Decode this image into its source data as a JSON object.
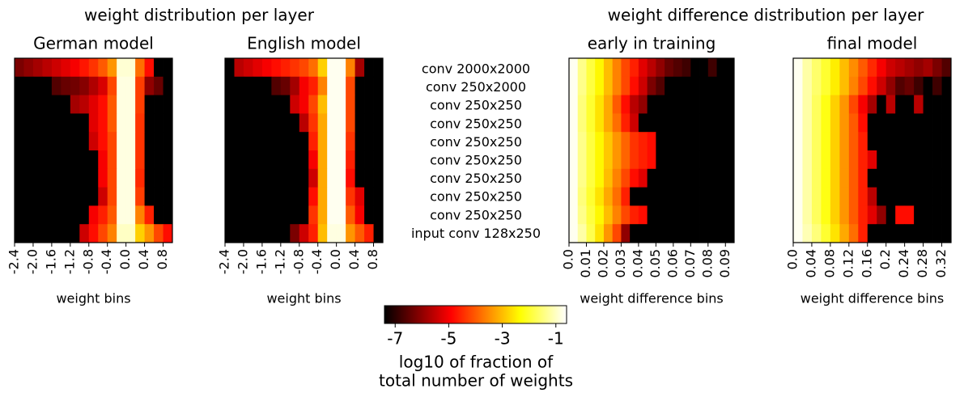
{
  "group_titles": [
    "weight distribution per layer",
    "weight difference distribution per layer"
  ],
  "row_labels": [
    "conv 2000x2000",
    "conv 250x2000",
    "conv 250x250",
    "conv 250x250",
    "conv 250x250",
    "conv 250x250",
    "conv 250x250",
    "conv 250x250",
    "conv 250x250",
    "input conv 128x250"
  ],
  "colorbar": {
    "label": [
      "log10 of fraction of",
      "total number of weights"
    ],
    "lim": [
      -7.4,
      -0.6
    ],
    "ticks": [
      -7,
      -5,
      -3,
      -1
    ],
    "colormap": "hot"
  },
  "chart_data": [
    {
      "type": "heatmap",
      "title": "German model",
      "xlabel": "weight bins",
      "xlim": [
        -2.4,
        1.0
      ],
      "xticks": [
        -2.4,
        {
          "value": -2.0,
          "label": "-2.0"
        },
        -1.6,
        -1.2,
        -0.8,
        -0.4,
        {
          "value": 0,
          "label": "0.0"
        },
        0.4,
        0.8
      ],
      "values": [
        [
          -6.2,
          -6.0,
          -5.8,
          -5.6,
          -5.4,
          -5.2,
          -5.0,
          -4.7,
          -4.4,
          -4.0,
          -3.4,
          -0.9,
          -0.9,
          -3.8,
          -4.8,
          -7.4,
          -7.4
        ],
        [
          -7.4,
          -7.4,
          -7.4,
          -7.4,
          -6.6,
          -6.4,
          -6.3,
          -6.1,
          -5.7,
          -5.3,
          -4.2,
          -0.8,
          -0.8,
          -4.3,
          -6.0,
          -6.4,
          -7.4
        ],
        [
          -7.4,
          -7.4,
          -7.4,
          -7.4,
          -7.4,
          -7.4,
          -5.8,
          -5.6,
          -5.2,
          -4.8,
          -4.0,
          -0.8,
          -0.8,
          -4.3,
          -7.4,
          -7.4,
          -7.4
        ],
        [
          -7.4,
          -7.4,
          -7.4,
          -7.4,
          -7.4,
          -7.4,
          -7.4,
          -7.4,
          -5.2,
          -4.8,
          -4.0,
          -0.8,
          -0.8,
          -4.4,
          -7.4,
          -7.4,
          -7.4
        ],
        [
          -7.4,
          -7.4,
          -7.4,
          -7.4,
          -7.4,
          -7.4,
          -7.4,
          -7.4,
          -5.4,
          -4.8,
          -4.2,
          -0.8,
          -0.8,
          -4.4,
          -7.4,
          -7.4,
          -7.4
        ],
        [
          -7.4,
          -7.4,
          -7.4,
          -7.4,
          -7.4,
          -7.4,
          -7.4,
          -7.4,
          -7.4,
          -5.0,
          -4.2,
          -0.8,
          -0.8,
          -4.4,
          -7.4,
          -7.4,
          -7.4
        ],
        [
          -7.4,
          -7.4,
          -7.4,
          -7.4,
          -7.4,
          -7.4,
          -7.4,
          -7.4,
          -7.4,
          -5.0,
          -4.2,
          -0.8,
          -0.8,
          -4.5,
          -7.4,
          -7.4,
          -7.4
        ],
        [
          -7.4,
          -7.4,
          -7.4,
          -7.4,
          -7.4,
          -7.4,
          -7.4,
          -7.4,
          -7.4,
          -5.4,
          -4.2,
          -0.8,
          -0.8,
          -4.3,
          -7.4,
          -7.4,
          -7.4
        ],
        [
          -7.4,
          -7.4,
          -7.4,
          -7.4,
          -7.4,
          -7.4,
          -7.4,
          -7.4,
          -5.0,
          -4.6,
          -4.0,
          -0.8,
          -0.8,
          -3.6,
          -4.6,
          -7.4,
          -7.4
        ],
        [
          -7.4,
          -7.4,
          -7.4,
          -7.4,
          -7.4,
          -7.4,
          -7.4,
          -5.4,
          -4.8,
          -4.2,
          -3.6,
          -1.0,
          -1.0,
          -2.8,
          -3.4,
          -4.2,
          -4.8
        ]
      ]
    },
    {
      "type": "heatmap",
      "title": "English model",
      "xlabel": "weight bins",
      "xlim": [
        -2.4,
        1.0
      ],
      "xticks": [
        -2.4,
        {
          "value": -2.0,
          "label": "-2.0"
        },
        -1.6,
        -1.2,
        -0.8,
        -0.4,
        {
          "value": 0,
          "label": "0.0"
        },
        0.4,
        0.8
      ],
      "values": [
        [
          -7.4,
          -5.6,
          -5.4,
          -5.2,
          -5.0,
          -4.8,
          -4.6,
          -4.4,
          -4.2,
          -3.8,
          -2.8,
          -0.7,
          -0.7,
          -3.6,
          -5.8,
          -7.4,
          -7.4
        ],
        [
          -7.4,
          -7.4,
          -7.4,
          -7.4,
          -7.4,
          -6.6,
          -6.4,
          -5.8,
          -5.0,
          -4.6,
          -3.6,
          -0.7,
          -0.7,
          -4.2,
          -7.4,
          -7.4,
          -7.4
        ],
        [
          -7.4,
          -7.4,
          -7.4,
          -7.4,
          -7.4,
          -7.4,
          -7.4,
          -5.4,
          -5.0,
          -4.2,
          -3.0,
          -0.7,
          -0.7,
          -4.2,
          -7.4,
          -7.4,
          -7.4
        ],
        [
          -7.4,
          -7.4,
          -7.4,
          -7.4,
          -7.4,
          -7.4,
          -7.4,
          -7.4,
          -5.6,
          -4.4,
          -3.2,
          -0.7,
          -0.7,
          -4.2,
          -7.4,
          -7.4,
          -7.4
        ],
        [
          -7.4,
          -7.4,
          -7.4,
          -7.4,
          -7.4,
          -7.4,
          -7.4,
          -7.4,
          -7.4,
          -4.6,
          -3.2,
          -0.7,
          -0.7,
          -4.4,
          -7.4,
          -7.4,
          -7.4
        ],
        [
          -7.4,
          -7.4,
          -7.4,
          -7.4,
          -7.4,
          -7.4,
          -7.4,
          -7.4,
          -7.4,
          -5.0,
          -3.2,
          -0.7,
          -0.7,
          -4.6,
          -7.4,
          -7.4,
          -7.4
        ],
        [
          -7.4,
          -7.4,
          -7.4,
          -7.4,
          -7.4,
          -7.4,
          -7.4,
          -7.4,
          -7.4,
          -5.4,
          -3.2,
          -0.7,
          -0.7,
          -4.8,
          -7.4,
          -7.4,
          -7.4
        ],
        [
          -7.4,
          -7.4,
          -7.4,
          -7.4,
          -7.4,
          -7.4,
          -7.4,
          -7.4,
          -7.4,
          -4.8,
          -3.2,
          -0.7,
          -0.7,
          -4.4,
          -5.2,
          -7.4,
          -7.4
        ],
        [
          -7.4,
          -7.4,
          -7.4,
          -7.4,
          -7.4,
          -7.4,
          -7.4,
          -7.4,
          -7.4,
          -4.4,
          -3.2,
          -0.7,
          -0.7,
          -4.0,
          -5.0,
          -7.4,
          -7.4
        ],
        [
          -7.4,
          -7.4,
          -7.4,
          -7.4,
          -7.4,
          -7.4,
          -7.4,
          -6.2,
          -5.4,
          -4.6,
          -3.0,
          -0.8,
          -0.8,
          -3.4,
          -4.0,
          -4.6,
          -7.4
        ]
      ]
    },
    {
      "type": "heatmap",
      "title": "early in training",
      "xlabel": "weight difference bins",
      "xlim": [
        0,
        0.095
      ],
      "xticks": [
        {
          "value": 0,
          "label": "0.0"
        },
        0.01,
        0.02,
        0.03,
        0.04,
        0.05,
        0.06,
        0.07,
        0.08,
        0.09
      ],
      "values": [
        [
          -0.7,
          -1.4,
          -1.9,
          -2.4,
          -3.0,
          -3.6,
          -4.2,
          -4.6,
          -5.2,
          -5.6,
          -6.0,
          -6.4,
          -6.6,
          -6.8,
          -7.4,
          -7.4,
          -6.8,
          -7.4,
          -7.4
        ],
        [
          -0.7,
          -1.4,
          -1.9,
          -2.4,
          -3.0,
          -3.6,
          -4.2,
          -4.8,
          -5.4,
          -6.2,
          -6.6,
          -7.4,
          -7.4,
          -7.4,
          -7.4,
          -7.4,
          -7.4,
          -7.4,
          -7.4
        ],
        [
          -0.7,
          -1.5,
          -2.0,
          -2.6,
          -3.2,
          -4.0,
          -4.8,
          -5.6,
          -6.0,
          -7.4,
          -7.4,
          -7.4,
          -7.4,
          -7.4,
          -7.4,
          -7.4,
          -7.4,
          -7.4,
          -7.4
        ],
        [
          -0.7,
          -1.5,
          -2.0,
          -2.6,
          -3.2,
          -3.8,
          -4.6,
          -5.4,
          -7.4,
          -7.4,
          -7.4,
          -7.4,
          -7.4,
          -7.4,
          -7.4,
          -7.4,
          -7.4,
          -7.4,
          -7.4
        ],
        [
          -0.7,
          -1.4,
          -1.9,
          -2.4,
          -2.9,
          -3.4,
          -3.9,
          -4.4,
          -4.6,
          -4.8,
          -7.4,
          -7.4,
          -7.4,
          -7.4,
          -7.4,
          -7.4,
          -7.4,
          -7.4,
          -7.4
        ],
        [
          -0.7,
          -1.4,
          -1.9,
          -2.4,
          -2.9,
          -3.4,
          -3.9,
          -4.4,
          -4.6,
          -4.8,
          -7.4,
          -7.4,
          -7.4,
          -7.4,
          -7.4,
          -7.4,
          -7.4,
          -7.4,
          -7.4
        ],
        [
          -0.7,
          -1.4,
          -1.9,
          -2.4,
          -3.0,
          -3.6,
          -4.2,
          -4.8,
          -5.2,
          -7.4,
          -7.4,
          -7.4,
          -7.4,
          -7.4,
          -7.4,
          -7.4,
          -7.4,
          -7.4,
          -7.4
        ],
        [
          -0.7,
          -1.5,
          -2.0,
          -2.6,
          -3.2,
          -3.8,
          -4.6,
          -7.4,
          -7.4,
          -7.4,
          -7.4,
          -7.4,
          -7.4,
          -7.4,
          -7.4,
          -7.4,
          -7.4,
          -7.4,
          -7.4
        ],
        [
          -0.7,
          -1.4,
          -1.9,
          -2.4,
          -3.0,
          -3.6,
          -4.2,
          -4.6,
          -4.8,
          -7.4,
          -7.4,
          -7.4,
          -7.4,
          -7.4,
          -7.4,
          -7.4,
          -7.4,
          -7.4,
          -7.4
        ],
        [
          -0.7,
          -1.2,
          -1.8,
          -2.6,
          -3.4,
          -4.2,
          -6.0,
          -7.4,
          -7.4,
          -7.4,
          -7.4,
          -7.4,
          -7.4,
          -7.4,
          -7.4,
          -7.4,
          -7.4,
          -7.4,
          -7.4
        ]
      ]
    },
    {
      "type": "heatmap",
      "title": "final model",
      "xlabel": "weight difference bins",
      "xlim": [
        0,
        0.34
      ],
      "xticks": [
        {
          "value": 0,
          "label": "0.0"
        },
        0.04,
        0.08,
        0.12,
        0.16,
        0.2,
        0.24,
        0.28,
        0.32
      ],
      "values": [
        [
          -0.7,
          -1.2,
          -1.6,
          -2.0,
          -2.5,
          -3.0,
          -3.5,
          -4.0,
          -4.5,
          -5.0,
          -5.4,
          -5.6,
          -5.8,
          -6.0,
          -5.8,
          -6.2,
          -6.6
        ],
        [
          -0.7,
          -1.2,
          -1.6,
          -2.0,
          -2.5,
          -3.0,
          -3.6,
          -4.2,
          -4.8,
          -5.4,
          -6.0,
          -6.6,
          -6.4,
          -6.8,
          -7.4,
          -6.8,
          -7.4
        ],
        [
          -0.7,
          -1.2,
          -1.7,
          -2.2,
          -2.8,
          -3.4,
          -4.2,
          -5.0,
          -5.8,
          -7.4,
          -5.6,
          -7.4,
          -7.4,
          -5.6,
          -7.4,
          -7.4,
          -7.4
        ],
        [
          -0.7,
          -1.2,
          -1.7,
          -2.2,
          -2.8,
          -3.4,
          -4.0,
          -4.8,
          -7.4,
          -7.4,
          -7.4,
          -7.4,
          -7.4,
          -7.4,
          -7.4,
          -7.4,
          -7.4
        ],
        [
          -0.7,
          -1.2,
          -1.7,
          -2.2,
          -2.8,
          -3.4,
          -4.0,
          -4.6,
          -7.4,
          -7.4,
          -7.4,
          -7.4,
          -7.4,
          -7.4,
          -7.4,
          -7.4,
          -7.4
        ],
        [
          -0.7,
          -1.2,
          -1.7,
          -2.2,
          -2.8,
          -3.4,
          -4.0,
          -4.6,
          -5.2,
          -7.4,
          -7.4,
          -7.4,
          -7.4,
          -7.4,
          -7.4,
          -7.4,
          -7.4
        ],
        [
          -0.7,
          -1.2,
          -1.7,
          -2.2,
          -2.8,
          -3.4,
          -4.0,
          -4.6,
          -7.4,
          -7.4,
          -7.4,
          -7.4,
          -7.4,
          -7.4,
          -7.4,
          -7.4,
          -7.4
        ],
        [
          -0.7,
          -1.2,
          -1.7,
          -2.2,
          -2.8,
          -3.4,
          -4.0,
          -4.6,
          -5.6,
          -7.4,
          -7.4,
          -7.4,
          -7.4,
          -7.4,
          -7.4,
          -7.4,
          -7.4
        ],
        [
          -0.7,
          -1.2,
          -1.7,
          -2.2,
          -2.8,
          -3.4,
          -4.0,
          -4.6,
          -5.2,
          -6.0,
          -7.4,
          -4.8,
          -4.8,
          -7.4,
          -7.4,
          -7.4,
          -7.4
        ],
        [
          -0.7,
          -1.1,
          -1.5,
          -2.0,
          -2.6,
          -3.2,
          -3.8,
          -4.6,
          -7.4,
          -7.4,
          -7.4,
          -7.4,
          -7.4,
          -7.4,
          -7.4,
          -7.4,
          -7.4
        ]
      ]
    }
  ]
}
